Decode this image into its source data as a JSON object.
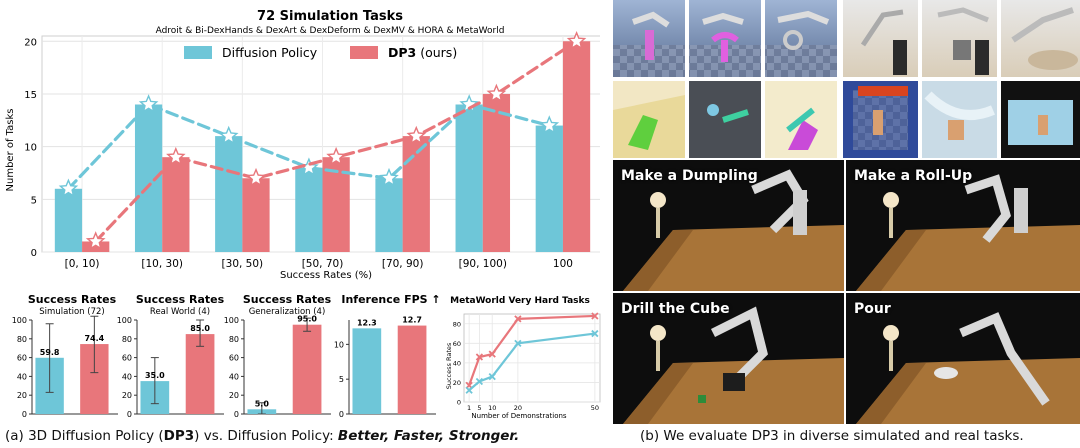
{
  "colors": {
    "dp": "#6ec6d8",
    "dp3": "#e8767b",
    "table": "#b07a3c",
    "dark": "#1a1a1a"
  },
  "main_chart": {
    "title": "72 Simulation Tasks",
    "subtitle": "Adroit & Bi-DexHands & DexArt & DexDeform & DexMV & HORA & MetaWorld",
    "ylabel": "Number of Tasks",
    "xlabel": "Success Rates (%)",
    "legend_dp": "Diffusion Policy",
    "legend_dp3_bold": "DP3",
    "legend_dp3_rest": " (ours)"
  },
  "sub_charts": {
    "c1": {
      "title": "Success Rates",
      "subtitle": "Simulation (72)"
    },
    "c2": {
      "title": "Success Rates",
      "subtitle": "Real World (4)"
    },
    "c3": {
      "title": "Success Rates",
      "subtitle": "Generalization (4)"
    },
    "c4": {
      "title": "Inference FPS ↑"
    },
    "c5": {
      "title": "MetaWorld Very Hard Tasks",
      "xlabel": "Number of Demonstrations",
      "ylabel": "Success Rates"
    }
  },
  "chart_data": [
    {
      "type": "bar",
      "title": "72 Simulation Tasks",
      "subtitle": "Adroit & Bi-DexHands & DexArt & DexDeform & DexMV & HORA & MetaWorld",
      "xlabel": "Success Rates (%)",
      "ylabel": "Number of Tasks",
      "ylim": [
        0,
        20.5
      ],
      "yticks": [
        0,
        5,
        10,
        15,
        20
      ],
      "categories": [
        "[0, 10)",
        "[10, 30)",
        "[30, 50)",
        "[50, 70)",
        "[70, 90)",
        "[90, 100)",
        "100"
      ],
      "series": [
        {
          "name": "Diffusion Policy",
          "values": [
            6,
            14,
            11,
            8,
            7,
            14,
            12
          ]
        },
        {
          "name": "DP3 (ours)",
          "values": [
            1,
            9,
            7,
            9,
            11,
            15,
            20
          ]
        }
      ],
      "legend": "top-center",
      "grid": true
    },
    {
      "type": "bar",
      "title": "Success Rates",
      "subtitle": "Simulation (72)",
      "ylim": [
        0,
        100
      ],
      "yticks": [
        0,
        20,
        40,
        60,
        80,
        100
      ],
      "series": [
        {
          "values": [
            59.8
          ],
          "err": [
            [
              23,
              96
            ]
          ],
          "label": "59.8"
        },
        {
          "values": [
            74.4
          ],
          "err": [
            [
              44,
              104
            ]
          ],
          "label": "74.4"
        }
      ]
    },
    {
      "type": "bar",
      "title": "Success Rates",
      "subtitle": "Real World (4)",
      "ylim": [
        0,
        100
      ],
      "yticks": [
        0,
        20,
        40,
        60,
        80,
        100
      ],
      "series": [
        {
          "values": [
            35.0
          ],
          "err": [
            [
              11,
              60
            ]
          ],
          "label": "35.0"
        },
        {
          "values": [
            85.0
          ],
          "err": [
            [
              72,
              100
            ]
          ],
          "label": "85.0"
        }
      ]
    },
    {
      "type": "bar",
      "title": "Success Rates",
      "subtitle": "Generalization (4)",
      "ylim": [
        0,
        100
      ],
      "yticks": [
        0,
        20,
        40,
        60,
        80,
        100
      ],
      "series": [
        {
          "values": [
            5.0
          ],
          "err": [
            [
              0,
              12
            ]
          ],
          "label": "5.0"
        },
        {
          "values": [
            95.0
          ],
          "err": [
            [
              88,
              102
            ]
          ],
          "label": "95.0"
        }
      ]
    },
    {
      "type": "bar",
      "title": "Inference FPS ↑",
      "ylim": [
        0,
        13.5
      ],
      "yticks": [
        0,
        5,
        10
      ],
      "series": [
        {
          "values": [
            12.3
          ],
          "label": "12.3"
        },
        {
          "values": [
            12.7
          ],
          "label": "12.7"
        }
      ]
    },
    {
      "type": "line",
      "title": "MetaWorld Very Hard Tasks",
      "xlabel": "Number of Demonstrations",
      "ylabel": "Success Rates",
      "x": [
        1,
        5,
        10,
        20,
        50
      ],
      "xticks": [
        1,
        5,
        10,
        20,
        50
      ],
      "ylim": [
        0,
        90
      ],
      "yticks": [
        0,
        20,
        40,
        60,
        80
      ],
      "series": [
        {
          "name": "DP3",
          "values": [
            17,
            46,
            49,
            85,
            88
          ]
        },
        {
          "name": "Diffusion Policy",
          "values": [
            12,
            21,
            26,
            60,
            70
          ]
        }
      ],
      "grid": true
    }
  ],
  "photos": {
    "dumpling": "Make a Dumpling",
    "rollup": "Make a Roll-Up",
    "drill": "Drill the Cube",
    "pour": "Pour"
  },
  "captions": {
    "a_prefix": "(a) 3D Diffusion Policy (",
    "a_bold": "DP3",
    "a_mid": ") vs. Diffusion Policy: ",
    "a_italic": "Better, Faster, Stronger.",
    "b": "(b) We evaluate DP3 in diverse simulated and real tasks."
  }
}
